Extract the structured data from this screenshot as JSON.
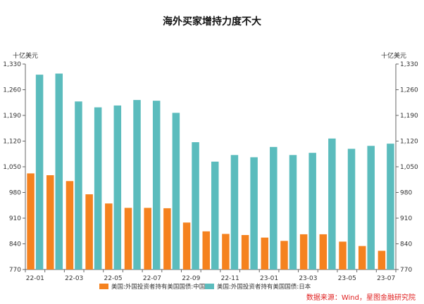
{
  "chart_data": {
    "type": "bar",
    "title": "海外买家增持力度不大",
    "y_unit_left": "十亿美元",
    "y_unit_right": "十亿美元",
    "ylim": [
      770,
      1330
    ],
    "yticks": [
      "1,330",
      "1,260",
      "1,190",
      "1,120",
      "1,050",
      "980",
      "910",
      "840",
      "770"
    ],
    "ytick_values": [
      1330,
      1260,
      1190,
      1120,
      1050,
      980,
      910,
      840,
      770
    ],
    "categories": [
      "22-01",
      "22-02",
      "22-03",
      "22-04",
      "22-05",
      "22-06",
      "22-07",
      "22-08",
      "22-09",
      "22-10",
      "22-11",
      "22-12",
      "23-01",
      "23-02",
      "23-03",
      "23-04",
      "23-05",
      "23-06",
      "23-07"
    ],
    "xtick_labels": [
      "22-01",
      "22-03",
      "22-05",
      "22-07",
      "22-09",
      "22-11",
      "23-01",
      "23-03",
      "23-05",
      "23-07"
    ],
    "series": [
      {
        "name": "美国:外国投资者持有美国国债:中国",
        "color": "#f5821f",
        "values": [
          1032,
          1027,
          1011,
          975,
          950,
          938,
          938,
          937,
          898,
          874,
          867,
          864,
          857,
          848,
          866,
          866,
          846,
          834,
          821
        ]
      },
      {
        "name": "美国:外国投资者持有美国国债:日本",
        "color": "#5bbcbd",
        "values": [
          1301,
          1304,
          1228,
          1212,
          1217,
          1232,
          1230,
          1197,
          1117,
          1064,
          1082,
          1076,
          1104,
          1082,
          1088,
          1127,
          1099,
          1107,
          1113
        ]
      }
    ],
    "legend_position": "bottom",
    "grid": false
  },
  "source": "数据来源：Wind，星图金融研究院"
}
